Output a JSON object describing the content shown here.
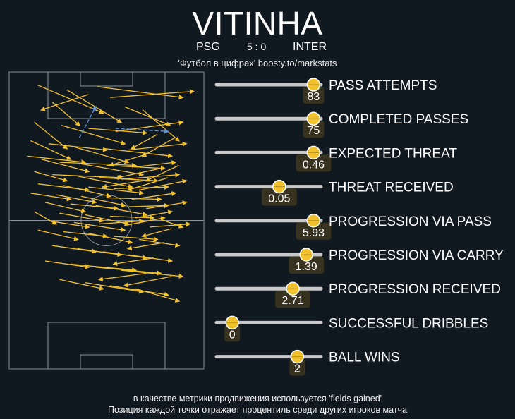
{
  "header": {
    "player_name": "VITINHA",
    "home_team": "PSG",
    "score": "5 : 0",
    "away_team": "INTER",
    "source": "'Футбол в цифрах' boosty.to/markstats"
  },
  "footer": {
    "line1": "в качестве метрики продвижения используется 'fields gained'",
    "line2": "Позиция каждой точки отражает процентиль среди других игроков матча"
  },
  "colors": {
    "background": "#101820",
    "pass_arrow": "#f2c12e",
    "carry_arrow": "#5b8fd6",
    "marker": "#f2c12e",
    "bar_track": "#c8c8c8",
    "value_box": "#3a3420",
    "pitch_lines": "#8a9099"
  },
  "chart_data": [
    {
      "type": "bar",
      "title": "",
      "xlabel": "",
      "ylabel": "",
      "note": "percentile among match players (0-1)",
      "xlim": [
        0,
        1
      ],
      "categories": [
        "PASS ATTEMPTS",
        "COMPLETED PASSES",
        "EXPECTED THREAT",
        "THREAT RECEIVED",
        "PROGRESSION VIA PASS",
        "PROGRESSION VIA CARRY",
        "PROGRESSION RECEIVED",
        "SUCCESSFUL DRIBBLES",
        "BALL WINS"
      ],
      "value_labels": [
        "83",
        "75",
        "0.46",
        "0.05",
        "5.93",
        "1.39",
        "2.71",
        "0",
        "2"
      ],
      "percentiles": [
        0.98,
        0.98,
        0.98,
        0.6,
        0.98,
        0.9,
        0.75,
        0.08,
        0.8
      ]
    },
    {
      "type": "scatter",
      "title": "",
      "xlabel": "",
      "ylabel": "",
      "note": "pitch pass/carry map, pitch units x 0-100 (width), y 0-100 (length, 0 = own goal at bottom)",
      "xlim": [
        0,
        100
      ],
      "ylim": [
        0,
        100
      ],
      "passes": [
        [
          12,
          96,
          48,
          78
        ],
        [
          28,
          93,
          58,
          72
        ],
        [
          45,
          95,
          92,
          88
        ],
        [
          40,
          90,
          14,
          80
        ],
        [
          52,
          88,
          98,
          92
        ],
        [
          20,
          85,
          35,
          70
        ],
        [
          60,
          82,
          85,
          70
        ],
        [
          70,
          80,
          90,
          60
        ],
        [
          10,
          72,
          28,
          55
        ],
        [
          25,
          70,
          60,
          58
        ],
        [
          40,
          68,
          72,
          65
        ],
        [
          55,
          66,
          92,
          72
        ],
        [
          78,
          64,
          64,
          55
        ],
        [
          88,
          62,
          70,
          50
        ],
        [
          8,
          60,
          30,
          48
        ],
        [
          18,
          58,
          50,
          54
        ],
        [
          32,
          56,
          62,
          46
        ],
        [
          48,
          55,
          86,
          50
        ],
        [
          62,
          54,
          94,
          58
        ],
        [
          74,
          52,
          52,
          44
        ],
        [
          6,
          50,
          38,
          46
        ],
        [
          14,
          48,
          40,
          40
        ],
        [
          24,
          46,
          66,
          44
        ],
        [
          36,
          45,
          70,
          38
        ],
        [
          50,
          44,
          82,
          42
        ],
        [
          66,
          43,
          88,
          46
        ],
        [
          80,
          42,
          56,
          36
        ],
        [
          90,
          44,
          72,
          34
        ],
        [
          10,
          40,
          28,
          34
        ],
        [
          20,
          38,
          58,
          36
        ],
        [
          34,
          37,
          64,
          30
        ],
        [
          46,
          36,
          78,
          34
        ],
        [
          58,
          35,
          90,
          38
        ],
        [
          70,
          34,
          48,
          30
        ],
        [
          84,
          36,
          62,
          28
        ],
        [
          12,
          32,
          40,
          28
        ],
        [
          26,
          31,
          52,
          24
        ],
        [
          40,
          30,
          70,
          26
        ],
        [
          54,
          29,
          84,
          30
        ],
        [
          68,
          28,
          94,
          34
        ],
        [
          8,
          26,
          30,
          22
        ],
        [
          22,
          25,
          44,
          20
        ],
        [
          36,
          24,
          60,
          18
        ],
        [
          50,
          23,
          80,
          22
        ],
        [
          64,
          22,
          88,
          26
        ],
        [
          16,
          20,
          38,
          14
        ],
        [
          30,
          19,
          56,
          16
        ],
        [
          44,
          18,
          72,
          12
        ],
        [
          58,
          17,
          84,
          18
        ],
        [
          72,
          16,
          94,
          20
        ],
        [
          10,
          14,
          22,
          6
        ],
        [
          24,
          13,
          48,
          8
        ],
        [
          38,
          12,
          62,
          6
        ],
        [
          52,
          11,
          76,
          10
        ],
        [
          66,
          10,
          86,
          14
        ],
        [
          80,
          9,
          92,
          4
        ],
        [
          18,
          8,
          40,
          4
        ],
        [
          32,
          7,
          60,
          2
        ],
        [
          46,
          6,
          70,
          8
        ],
        [
          60,
          5,
          82,
          10
        ],
        [
          74,
          4,
          96,
          6
        ],
        [
          86,
          3,
          70,
          -2
        ],
        [
          12,
          2,
          34,
          -4
        ],
        [
          26,
          1,
          50,
          -2
        ],
        [
          40,
          0,
          64,
          -6
        ],
        [
          54,
          -2,
          78,
          -4
        ],
        [
          68,
          -4,
          90,
          -8
        ],
        [
          82,
          -6,
          62,
          -10
        ],
        [
          20,
          -8,
          44,
          -12
        ],
        [
          34,
          -10,
          58,
          -14
        ],
        [
          48,
          -12,
          72,
          -16
        ],
        [
          62,
          -14,
          86,
          -18
        ],
        [
          76,
          -16,
          54,
          -20
        ],
        [
          16,
          -18,
          40,
          -22
        ],
        [
          30,
          -20,
          66,
          -24
        ],
        [
          44,
          -22,
          80,
          -26
        ],
        [
          58,
          -24,
          92,
          -28
        ],
        [
          72,
          -26,
          46,
          -30
        ],
        [
          86,
          -28,
          60,
          -34
        ],
        [
          24,
          -30,
          48,
          -36
        ],
        [
          38,
          -32,
          70,
          -38
        ],
        [
          52,
          -34,
          84,
          -40
        ],
        [
          66,
          -36,
          90,
          -44
        ]
      ],
      "carries": [
        [
          35,
          62,
          44,
          82
        ],
        [
          55,
          68,
          84,
          66
        ]
      ]
    }
  ]
}
